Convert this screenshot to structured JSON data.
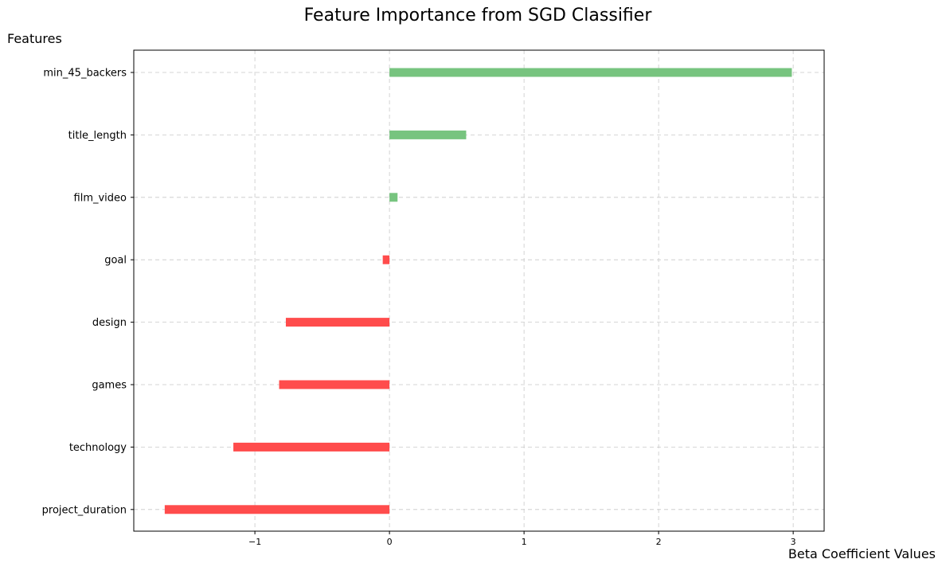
{
  "chart_data": {
    "type": "bar",
    "orientation": "horizontal",
    "title": "Feature Importance from SGD Classifier",
    "xlabel": "Beta Coefficient Values",
    "ylabel": "Features",
    "categories": [
      "min_45_backers",
      "title_length",
      "film_video",
      "goal",
      "design",
      "games",
      "technology",
      "project_duration"
    ],
    "values": [
      2.99,
      0.57,
      0.06,
      -0.05,
      -0.77,
      -0.82,
      -1.16,
      -1.67
    ],
    "xlim": [
      -1.9,
      3.23
    ],
    "xticks": [
      -1,
      0,
      1,
      2,
      3
    ],
    "xtick_labels": [
      "−1",
      "0",
      "1",
      "2",
      "3"
    ],
    "grid": true,
    "colors": {
      "positive": "#77c47f",
      "negative": "#ff4c4c"
    }
  }
}
